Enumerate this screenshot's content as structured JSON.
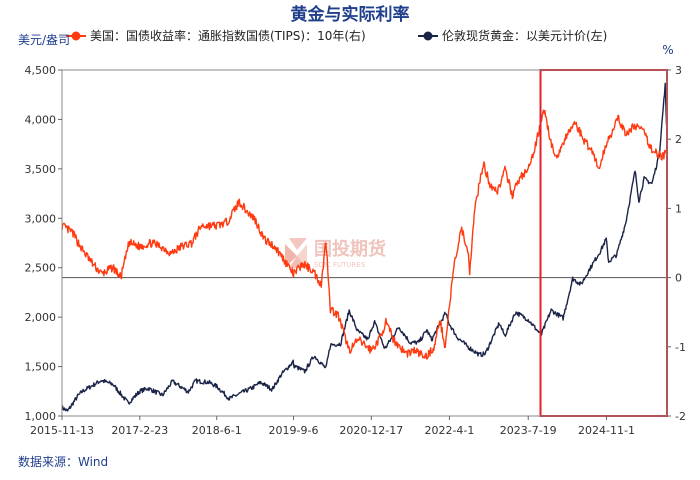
{
  "chart_data": {
    "type": "line",
    "title": "黄金与实际利率",
    "source": "数据来源：Wind",
    "watermark": "国投期货",
    "watermark_sub": "SDIC FUTURES",
    "left_unit": "美元/盎司",
    "right_unit": "%",
    "ylim_left": [
      1000,
      4500
    ],
    "ylim_right": [
      -2,
      3
    ],
    "left_ticks": [
      "1,000",
      "1,500",
      "2,000",
      "2,500",
      "3,000",
      "3,500",
      "4,000",
      "4,500"
    ],
    "right_ticks": [
      "-2",
      "-1",
      "0",
      "1",
      "2",
      "3"
    ],
    "x_tick_labels": [
      "2015-11-13",
      "2017-2-23",
      "2018-6-1",
      "2019-9-6",
      "2020-12-17",
      "2022-4-1",
      "2023-7-19",
      "2024-11-1"
    ],
    "x_range": [
      "2015-11-13",
      "2025-10-31"
    ],
    "colors": {
      "tips": "#ff3a10",
      "gold": "#1b2447",
      "highlight": "#e0202a",
      "title": "#1f3e8c"
    },
    "highlight_range": [
      "2023-10-01",
      "2025-10-31"
    ],
    "series": [
      {
        "name": "美国：国债收益率：通胀指数国债(TIPS)：10年(右)",
        "axis": "right",
        "color": "#ff3a10",
        "points": [
          [
            "2015-11-13",
            0.75
          ],
          [
            "2016-01-15",
            0.65
          ],
          [
            "2016-03-15",
            0.4
          ],
          [
            "2016-05-15",
            0.2
          ],
          [
            "2016-07-10",
            0.05
          ],
          [
            "2016-09-15",
            0.15
          ],
          [
            "2016-11-01",
            0.0
          ],
          [
            "2016-12-20",
            0.5
          ],
          [
            "2017-02-23",
            0.45
          ],
          [
            "2017-05-01",
            0.5
          ],
          [
            "2017-07-01",
            0.45
          ],
          [
            "2017-09-01",
            0.35
          ],
          [
            "2017-11-01",
            0.45
          ],
          [
            "2018-01-01",
            0.5
          ],
          [
            "2018-03-01",
            0.75
          ],
          [
            "2018-06-01",
            0.75
          ],
          [
            "2018-08-01",
            0.8
          ],
          [
            "2018-10-15",
            1.1
          ],
          [
            "2018-12-01",
            0.95
          ],
          [
            "2019-01-15",
            0.85
          ],
          [
            "2019-03-15",
            0.55
          ],
          [
            "2019-05-15",
            0.45
          ],
          [
            "2019-07-15",
            0.25
          ],
          [
            "2019-09-06",
            0.05
          ],
          [
            "2019-11-01",
            0.2
          ],
          [
            "2020-01-01",
            0.1
          ],
          [
            "2020-02-20",
            -0.1
          ],
          [
            "2020-03-19",
            0.55
          ],
          [
            "2020-04-15",
            -0.45
          ],
          [
            "2020-06-01",
            -0.55
          ],
          [
            "2020-08-06",
            -1.05
          ],
          [
            "2020-10-01",
            -0.9
          ],
          [
            "2020-12-17",
            -1.05
          ],
          [
            "2021-02-01",
            -0.9
          ],
          [
            "2021-03-15",
            -0.65
          ],
          [
            "2021-05-01",
            -0.9
          ],
          [
            "2021-07-15",
            -1.1
          ],
          [
            "2021-09-01",
            -1.05
          ],
          [
            "2021-11-08",
            -1.15
          ],
          [
            "2022-01-01",
            -1.0
          ],
          [
            "2022-02-01",
            -0.6
          ],
          [
            "2022-03-07",
            -1.0
          ],
          [
            "2022-04-01",
            -0.4
          ],
          [
            "2022-05-01",
            0.2
          ],
          [
            "2022-06-14",
            0.7
          ],
          [
            "2022-07-20",
            0.4
          ],
          [
            "2022-08-01",
            0.1
          ],
          [
            "2022-09-01",
            1.0
          ],
          [
            "2022-10-21",
            1.65
          ],
          [
            "2022-12-01",
            1.35
          ],
          [
            "2023-01-15",
            1.25
          ],
          [
            "2023-03-01",
            1.55
          ],
          [
            "2023-04-15",
            1.2
          ],
          [
            "2023-06-01",
            1.45
          ],
          [
            "2023-07-19",
            1.55
          ],
          [
            "2023-09-01",
            1.9
          ],
          [
            "2023-10-19",
            2.45
          ],
          [
            "2023-12-27",
            1.7
          ],
          [
            "2024-02-15",
            1.95
          ],
          [
            "2024-04-25",
            2.25
          ],
          [
            "2024-06-15",
            2.0
          ],
          [
            "2024-08-15",
            1.8
          ],
          [
            "2024-09-16",
            1.55
          ],
          [
            "2024-11-01",
            1.95
          ],
          [
            "2025-01-13",
            2.3
          ],
          [
            "2025-03-01",
            2.05
          ],
          [
            "2025-04-15",
            2.2
          ],
          [
            "2025-06-01",
            2.15
          ],
          [
            "2025-08-01",
            1.85
          ],
          [
            "2025-10-01",
            1.75
          ],
          [
            "2025-10-31",
            1.8
          ]
        ]
      },
      {
        "name": "伦敦现货黄金：以美元计价(左)",
        "axis": "left",
        "color": "#1b2447",
        "points": [
          [
            "2015-11-13",
            1085
          ],
          [
            "2015-12-17",
            1050
          ],
          [
            "2016-02-15",
            1200
          ],
          [
            "2016-03-15",
            1250
          ],
          [
            "2016-07-06",
            1360
          ],
          [
            "2016-09-15",
            1320
          ],
          [
            "2016-12-15",
            1130
          ],
          [
            "2017-02-23",
            1250
          ],
          [
            "2017-04-15",
            1280
          ],
          [
            "2017-07-10",
            1210
          ],
          [
            "2017-09-08",
            1350
          ],
          [
            "2017-12-12",
            1245
          ],
          [
            "2018-01-25",
            1355
          ],
          [
            "2018-04-15",
            1340
          ],
          [
            "2018-06-01",
            1300
          ],
          [
            "2018-08-16",
            1175
          ],
          [
            "2018-10-15",
            1225
          ],
          [
            "2019-01-01",
            1285
          ],
          [
            "2019-02-20",
            1340
          ],
          [
            "2019-05-01",
            1270
          ],
          [
            "2019-06-25",
            1420
          ],
          [
            "2019-09-04",
            1550
          ],
          [
            "2019-09-06",
            1510
          ],
          [
            "2019-11-12",
            1450
          ],
          [
            "2020-01-08",
            1610
          ],
          [
            "2020-03-19",
            1480
          ],
          [
            "2020-04-15",
            1720
          ],
          [
            "2020-06-15",
            1730
          ],
          [
            "2020-08-06",
            2067
          ],
          [
            "2020-09-25",
            1860
          ],
          [
            "2020-11-30",
            1770
          ],
          [
            "2020-12-17",
            1880
          ],
          [
            "2021-01-06",
            1950
          ],
          [
            "2021-03-08",
            1680
          ],
          [
            "2021-06-01",
            1900
          ],
          [
            "2021-08-09",
            1740
          ],
          [
            "2021-09-29",
            1745
          ],
          [
            "2021-11-16",
            1870
          ],
          [
            "2021-12-15",
            1770
          ],
          [
            "2022-03-08",
            2040
          ],
          [
            "2022-04-01",
            1930
          ],
          [
            "2022-05-16",
            1800
          ],
          [
            "2022-07-21",
            1700
          ],
          [
            "2022-09-28",
            1620
          ],
          [
            "2022-11-03",
            1630
          ],
          [
            "2023-01-26",
            1940
          ],
          [
            "2023-02-28",
            1810
          ],
          [
            "2023-05-04",
            2050
          ],
          [
            "2023-07-19",
            1975
          ],
          [
            "2023-10-05",
            1820
          ],
          [
            "2023-12-04",
            2070
          ],
          [
            "2024-02-14",
            1990
          ],
          [
            "2024-04-12",
            2390
          ],
          [
            "2024-06-01",
            2330
          ],
          [
            "2024-07-17",
            2470
          ],
          [
            "2024-09-26",
            2670
          ],
          [
            "2024-10-30",
            2790
          ],
          [
            "2024-11-14",
            2560
          ],
          [
            "2025-01-01",
            2630
          ],
          [
            "2025-02-24",
            2950
          ],
          [
            "2025-04-22",
            3480
          ],
          [
            "2025-05-15",
            3180
          ],
          [
            "2025-06-15",
            3400
          ],
          [
            "2025-08-01",
            3350
          ],
          [
            "2025-09-15",
            3650
          ],
          [
            "2025-10-20",
            4350
          ],
          [
            "2025-10-28",
            3950
          ],
          [
            "2025-10-31",
            4000
          ]
        ]
      }
    ]
  }
}
